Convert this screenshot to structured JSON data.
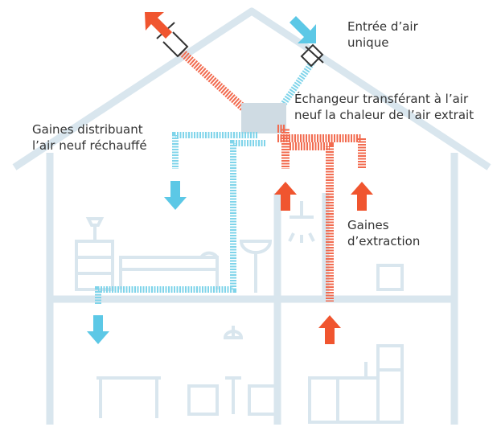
{
  "labels": {
    "air_intake": [
      "Entrée d’air",
      "unique"
    ],
    "exchanger": [
      "Échangeur transférant à l’air",
      "neuf la chaleur de l’air extrait"
    ],
    "supply_ducts": [
      "Gaines distribuant",
      "l’air neuf réchauffé"
    ],
    "extraction_ducts": [
      "Gaines",
      "d’extraction"
    ]
  }
}
